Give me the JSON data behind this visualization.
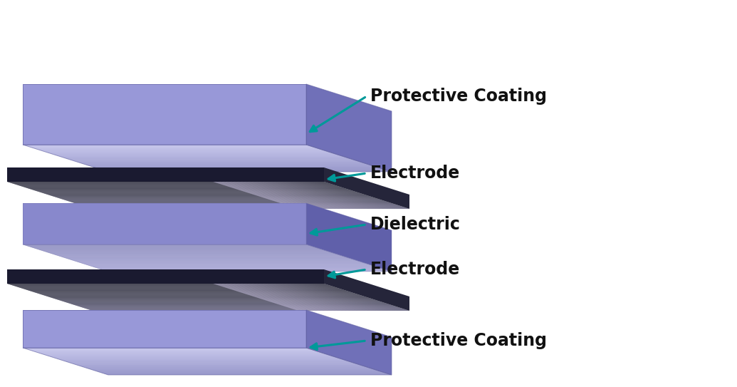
{
  "layers": [
    {
      "name": "Protective Coating",
      "type": "coating"
    },
    {
      "name": "Electrode",
      "type": "electrode"
    },
    {
      "name": "Dielectric",
      "type": "dielectric"
    },
    {
      "name": "Electrode",
      "type": "electrode"
    },
    {
      "name": "Protective Coating",
      "type": "coating"
    }
  ],
  "coating_top": "#8888cc",
  "coating_top2": "#9898dd",
  "coating_face": "#aaaadd",
  "coating_side": "#7070bb",
  "coating_bot": "#c0c0e8",
  "electrode_dark": "#151525",
  "electrode_mid": "#2a2a45",
  "electrode_glow": "#e0d8f0",
  "dielectric_top": "#8888bb",
  "dielectric_face": "#9898cc",
  "dielectric_side": "#6868aa",
  "arrow_color": "#009999",
  "text_color": "#111111",
  "bg_color": "#ffffff",
  "label_fontsize": 17,
  "label_fontweight": "bold"
}
